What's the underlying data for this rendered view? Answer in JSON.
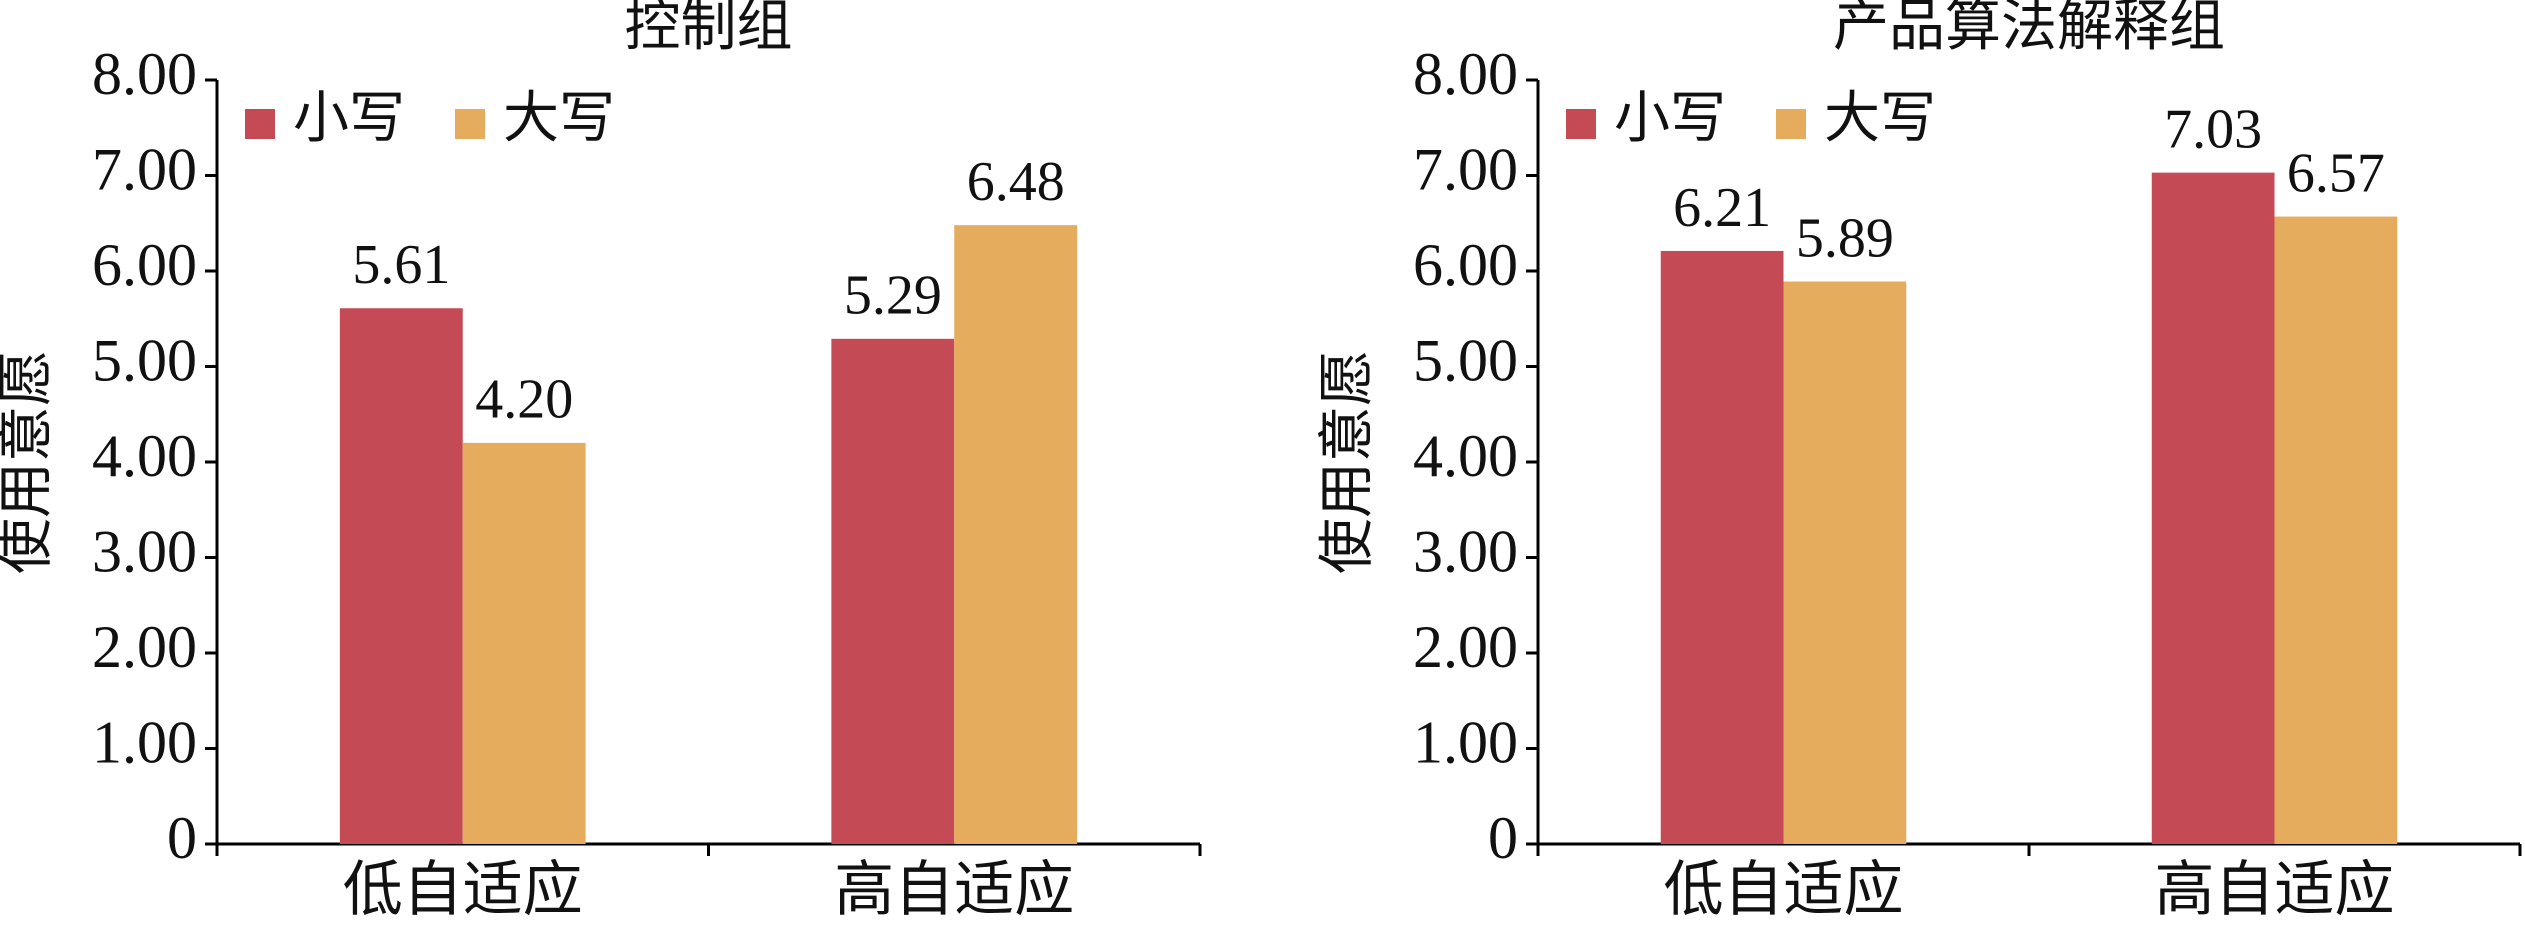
{
  "chart_data": [
    {
      "type": "bar",
      "title": "控制组",
      "y_label": "使用意愿",
      "categories": [
        "低自适应",
        "高自适应"
      ],
      "series": [
        {
          "name": "小写",
          "color": "#c44a56",
          "values": [
            5.61,
            5.29
          ],
          "value_labels": [
            "5.61",
            "5.29"
          ]
        },
        {
          "name": "大写",
          "color": "#e5ac5e",
          "values": [
            4.2,
            6.48
          ],
          "value_labels": [
            "4.20",
            "6.48"
          ]
        }
      ],
      "ylim": [
        0,
        8
      ],
      "yticks": [
        0,
        {
          "value": 1,
          "label": "1.00"
        },
        {
          "value": 2,
          "label": "2.00"
        },
        {
          "value": 3,
          "label": "3.00"
        },
        {
          "value": 4,
          "label": "4.00"
        },
        {
          "value": 5,
          "label": "5.00"
        },
        {
          "value": 6,
          "label": "6.00"
        },
        {
          "value": 7,
          "label": "7.00"
        },
        {
          "value": 8,
          "label": "8.00"
        }
      ],
      "legend": "top-left"
    },
    {
      "type": "bar",
      "title": "产品算法解释组",
      "y_label": "使用意愿",
      "categories": [
        "低自适应",
        "高自适应"
      ],
      "series": [
        {
          "name": "小写",
          "color": "#c44a56",
          "values": [
            6.21,
            7.03
          ],
          "value_labels": [
            "6.21",
            "7.03"
          ]
        },
        {
          "name": "大写",
          "color": "#e5ac5e",
          "values": [
            5.89,
            6.57
          ],
          "value_labels": [
            "5.89",
            "6.57"
          ]
        }
      ],
      "ylim": [
        0,
        8
      ],
      "yticks": [
        0,
        {
          "value": 1,
          "label": "1.00"
        },
        {
          "value": 2,
          "label": "2.00"
        },
        {
          "value": 3,
          "label": "3.00"
        },
        {
          "value": 4,
          "label": "4.00"
        },
        {
          "value": 5,
          "label": "5.00"
        },
        {
          "value": 6,
          "label": "6.00"
        },
        {
          "value": 7,
          "label": "7.00"
        },
        {
          "value": 8,
          "label": "8.00"
        }
      ],
      "legend": "top-left"
    }
  ]
}
